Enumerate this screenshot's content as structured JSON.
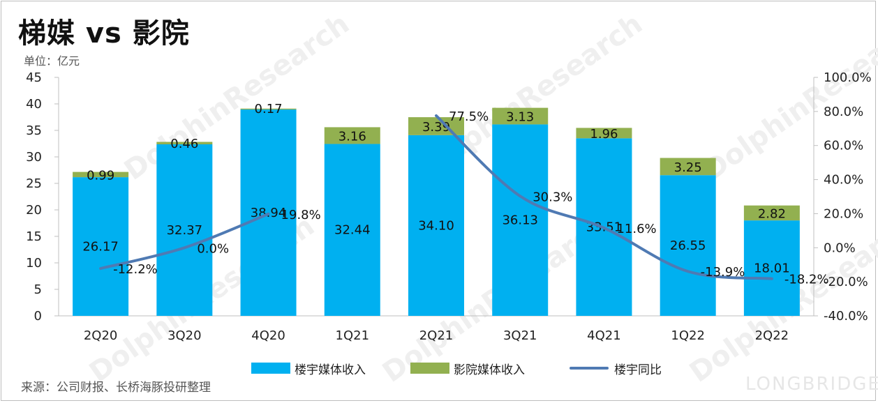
{
  "title": "梯媒 vs 影院",
  "unit_label": "单位：亿元",
  "source": "来源：公司财报、长桥海豚投研整理",
  "brand": "LONGBRIDGE",
  "watermark": "DolphinResearch",
  "colors": {
    "building": "#00B0F0",
    "cinema": "#92B050",
    "growth": "#4F7AB3"
  },
  "chart_data": {
    "type": "bar",
    "stacked": true,
    "categories": [
      "2Q20",
      "3Q20",
      "4Q20",
      "1Q21",
      "2Q21",
      "3Q21",
      "4Q21",
      "1Q22",
      "2Q22"
    ],
    "series": [
      {
        "name": "楼宇媒体收入",
        "type": "bar",
        "axis": "left",
        "values": [
          26.17,
          32.37,
          38.94,
          32.44,
          34.1,
          36.13,
          33.51,
          26.55,
          18.01
        ],
        "labels": [
          "26.17",
          "32.37",
          "38.94",
          "32.44",
          "34.10",
          "36.13",
          "33.51",
          "26.55",
          "18.01"
        ]
      },
      {
        "name": "影院媒体收入",
        "type": "bar",
        "axis": "left",
        "values": [
          0.99,
          0.46,
          0.17,
          3.16,
          3.39,
          3.13,
          1.96,
          3.25,
          2.82
        ],
        "labels": [
          "0.99",
          "0.46",
          "0.17",
          "3.16",
          "3.39",
          "3.13",
          "1.96",
          "3.25",
          "2.82"
        ]
      },
      {
        "name": "楼宇同比",
        "type": "line",
        "axis": "right",
        "values": [
          -12.2,
          0.0,
          19.8,
          null,
          77.5,
          30.3,
          11.6,
          -13.9,
          -18.2
        ],
        "labels": [
          "-12.2%",
          "0.0%",
          "19.8%",
          "",
          "77.5%",
          "30.3%",
          "11.6%",
          "-13.9%",
          "-18.2%"
        ]
      }
    ],
    "y_left": {
      "min": 0,
      "max": 45,
      "ticks": [
        "0",
        "5",
        "10",
        "15",
        "20",
        "25",
        "30",
        "35",
        "40",
        "45"
      ]
    },
    "y_right": {
      "min": -40,
      "max": 100,
      "ticks": [
        "-40.0%",
        "-20.0%",
        "0.0%",
        "20.0%",
        "40.0%",
        "60.0%",
        "80.0%",
        "100.0%"
      ]
    },
    "legend_position": "bottom"
  }
}
